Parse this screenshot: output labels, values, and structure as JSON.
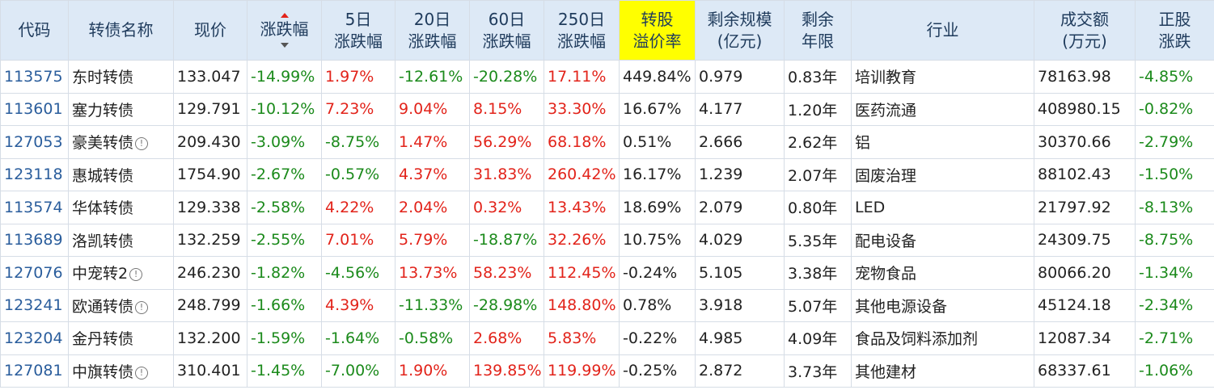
{
  "headers": {
    "code": "代码",
    "name": "转债名称",
    "price": "现价",
    "change": "涨跌幅",
    "d5_l1": "5日",
    "d5_l2": "涨跌幅",
    "d20_l1": "20日",
    "d20_l2": "涨跌幅",
    "d60_l1": "60日",
    "d60_l2": "涨跌幅",
    "d250_l1": "250日",
    "d250_l2": "涨跌幅",
    "prem_l1": "转股",
    "prem_l2": "溢价率",
    "scale_l1": "剩余规模",
    "scale_l2": "(亿元)",
    "years_l1": "剩余",
    "years_l2": "年限",
    "industry": "行业",
    "volume_l1": "成交额",
    "volume_l2": "(万元)",
    "stock_l1": "正股",
    "stock_l2": "涨跌"
  },
  "colors": {
    "up": "#e2231a",
    "down": "#1b8a1b",
    "header_bg": "#dde9f6",
    "highlight": "#ffff00",
    "code": "#2a5d9c"
  },
  "rows": [
    {
      "code": "113575",
      "name": "东时转债",
      "info": false,
      "price": "133.047",
      "change": "-14.99%",
      "d5": "1.97%",
      "d20": "-12.61%",
      "d60": "-20.28%",
      "d250": "17.11%",
      "premium": "449.84%",
      "scale": "0.979",
      "years": "0.83年",
      "industry": "培训教育",
      "volume": "78163.98",
      "stock": "-4.85%"
    },
    {
      "code": "113601",
      "name": "塞力转债",
      "info": false,
      "price": "129.791",
      "change": "-10.12%",
      "d5": "7.23%",
      "d20": "9.04%",
      "d60": "8.15%",
      "d250": "33.30%",
      "premium": "16.67%",
      "scale": "4.177",
      "years": "1.20年",
      "industry": "医药流通",
      "volume": "408980.15",
      "stock": "-0.82%"
    },
    {
      "code": "127053",
      "name": "豪美转债",
      "info": true,
      "price": "209.430",
      "change": "-3.09%",
      "d5": "-8.75%",
      "d20": "1.47%",
      "d60": "56.29%",
      "d250": "68.18%",
      "premium": "0.51%",
      "scale": "2.666",
      "years": "2.62年",
      "industry": "铝",
      "volume": "30370.66",
      "stock": "-2.79%"
    },
    {
      "code": "123118",
      "name": "惠城转债",
      "info": false,
      "price": "1754.90",
      "change": "-2.67%",
      "d5": "-0.57%",
      "d20": "4.37%",
      "d60": "31.83%",
      "d250": "260.42%",
      "premium": "16.17%",
      "scale": "1.239",
      "years": "2.07年",
      "industry": "固废治理",
      "volume": "88102.43",
      "stock": "-1.50%"
    },
    {
      "code": "113574",
      "name": "华体转债",
      "info": false,
      "price": "129.338",
      "change": "-2.58%",
      "d5": "4.22%",
      "d20": "2.04%",
      "d60": "0.32%",
      "d250": "13.43%",
      "premium": "18.69%",
      "scale": "2.079",
      "years": "0.80年",
      "industry": "LED",
      "volume": "21797.92",
      "stock": "-8.13%"
    },
    {
      "code": "113689",
      "name": "洛凯转债",
      "info": false,
      "price": "132.259",
      "change": "-2.55%",
      "d5": "7.01%",
      "d20": "5.79%",
      "d60": "-18.87%",
      "d250": "32.26%",
      "premium": "10.75%",
      "scale": "4.029",
      "years": "5.35年",
      "industry": "配电设备",
      "volume": "24309.75",
      "stock": "-8.75%"
    },
    {
      "code": "127076",
      "name": "中宠转2",
      "info": true,
      "price": "246.230",
      "change": "-1.82%",
      "d5": "-4.56%",
      "d20": "13.73%",
      "d60": "58.23%",
      "d250": "112.45%",
      "premium": "-0.24%",
      "scale": "5.105",
      "years": "3.38年",
      "industry": "宠物食品",
      "volume": "80066.20",
      "stock": "-1.34%"
    },
    {
      "code": "123241",
      "name": "欧通转债",
      "info": true,
      "price": "248.799",
      "change": "-1.66%",
      "d5": "4.39%",
      "d20": "-11.33%",
      "d60": "-28.98%",
      "d250": "148.80%",
      "premium": "0.78%",
      "scale": "3.918",
      "years": "5.07年",
      "industry": "其他电源设备",
      "volume": "45124.18",
      "stock": "-2.34%"
    },
    {
      "code": "123204",
      "name": "金丹转债",
      "info": false,
      "price": "132.200",
      "change": "-1.59%",
      "d5": "-1.64%",
      "d20": "-0.58%",
      "d60": "2.68%",
      "d250": "5.83%",
      "premium": "-0.22%",
      "scale": "4.985",
      "years": "4.09年",
      "industry": "食品及饲料添加剂",
      "volume": "12087.34",
      "stock": "-2.71%"
    },
    {
      "code": "127081",
      "name": "中旗转债",
      "info": true,
      "price": "310.401",
      "change": "-1.45%",
      "d5": "-7.00%",
      "d20": "1.90%",
      "d60": "139.85%",
      "d250": "119.99%",
      "premium": "-0.25%",
      "scale": "2.872",
      "years": "3.73年",
      "industry": "其他建材",
      "volume": "68337.61",
      "stock": "-1.06%"
    }
  ]
}
